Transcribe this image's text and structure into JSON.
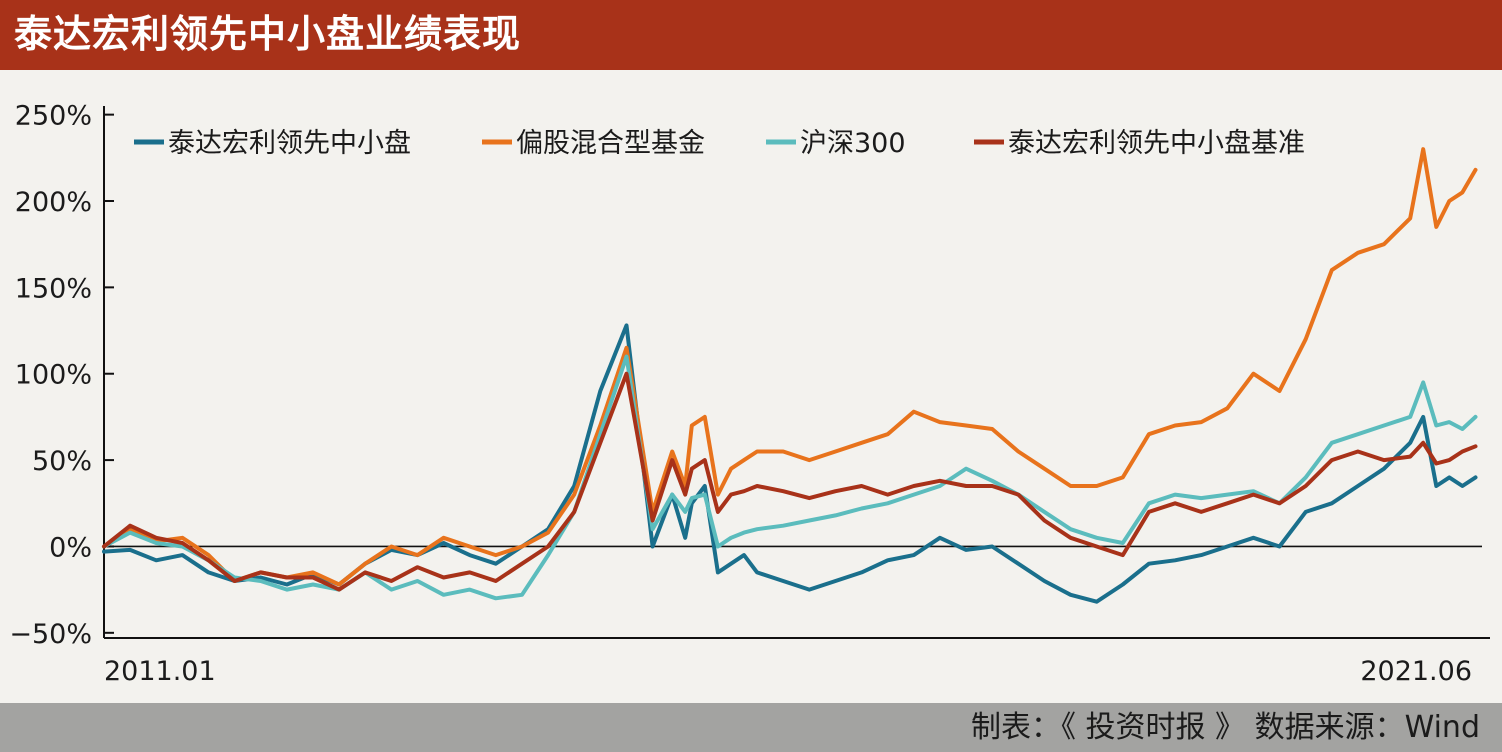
{
  "title": "泰达宏利领先中小盘业绩表现",
  "footer": "制表：《 投资时报 》 数据来源：Wind",
  "colors": {
    "title_bg": "#a83219",
    "footer_bg": "#a3a3a1",
    "background": "#f3f2ee"
  },
  "chart_data": {
    "type": "line",
    "title": "泰达宏利领先中小盘业绩表现",
    "xlabel": "",
    "ylabel": "",
    "x_tick_labels": [
      "2011.01",
      "2021.06"
    ],
    "y_ticks": [
      -50,
      0,
      50,
      100,
      150,
      200,
      250
    ],
    "y_tick_labels": [
      "−50%",
      "0%",
      "50%",
      "100%",
      "150%",
      "200%",
      "250%"
    ],
    "ylim": [
      -53,
      255
    ],
    "xlim": [
      2011.0,
      2021.55
    ],
    "grid": false,
    "legend_position": "top-left",
    "series": [
      {
        "name": "泰达宏利领先中小盘",
        "color": "#1a6f8c",
        "x": [
          2011.0,
          2011.2,
          2011.4,
          2011.6,
          2011.8,
          2012.0,
          2012.2,
          2012.4,
          2012.6,
          2012.8,
          2013.0,
          2013.2,
          2013.4,
          2013.6,
          2013.8,
          2014.0,
          2014.2,
          2014.4,
          2014.6,
          2014.8,
          2015.0,
          2015.2,
          2015.35,
          2015.45,
          2015.5,
          2015.6,
          2015.7,
          2015.8,
          2015.9,
          2016.0,
          2016.2,
          2016.4,
          2016.6,
          2016.8,
          2017.0,
          2017.2,
          2017.4,
          2017.6,
          2017.8,
          2018.0,
          2018.2,
          2018.4,
          2018.6,
          2018.8,
          2019.0,
          2019.2,
          2019.4,
          2019.6,
          2019.8,
          2020.0,
          2020.2,
          2020.4,
          2020.6,
          2020.8,
          2021.0,
          2021.1,
          2021.2,
          2021.3,
          2021.4,
          2021.5
        ],
        "y": [
          -3,
          -2,
          -8,
          -5,
          -15,
          -20,
          -18,
          -22,
          -16,
          -22,
          -10,
          -2,
          -5,
          2,
          -5,
          -10,
          0,
          10,
          35,
          90,
          128,
          0,
          30,
          5,
          25,
          35,
          -15,
          -10,
          -5,
          -15,
          -20,
          -25,
          -20,
          -15,
          -8,
          -5,
          5,
          -2,
          0,
          -10,
          -20,
          -28,
          -32,
          -22,
          -10,
          -8,
          -5,
          0,
          5,
          0,
          20,
          25,
          35,
          45,
          60,
          75,
          35,
          40,
          35,
          40
        ]
      },
      {
        "name": "偏股混合型基金",
        "color": "#e8731c",
        "x": [
          2011.0,
          2011.2,
          2011.4,
          2011.6,
          2011.8,
          2012.0,
          2012.2,
          2012.4,
          2012.6,
          2012.8,
          2013.0,
          2013.2,
          2013.4,
          2013.6,
          2013.8,
          2014.0,
          2014.2,
          2014.4,
          2014.6,
          2014.8,
          2015.0,
          2015.2,
          2015.35,
          2015.45,
          2015.5,
          2015.6,
          2015.7,
          2015.8,
          2015.9,
          2016.0,
          2016.2,
          2016.4,
          2016.6,
          2016.8,
          2017.0,
          2017.2,
          2017.4,
          2017.6,
          2017.8,
          2018.0,
          2018.2,
          2018.4,
          2018.6,
          2018.8,
          2019.0,
          2019.2,
          2019.4,
          2019.6,
          2019.8,
          2020.0,
          2020.2,
          2020.4,
          2020.6,
          2020.8,
          2021.0,
          2021.1,
          2021.2,
          2021.3,
          2021.4,
          2021.5
        ],
        "y": [
          0,
          10,
          3,
          5,
          -5,
          -20,
          -15,
          -18,
          -15,
          -22,
          -10,
          0,
          -5,
          5,
          0,
          -5,
          0,
          8,
          30,
          70,
          115,
          20,
          55,
          35,
          70,
          75,
          30,
          45,
          50,
          55,
          55,
          50,
          55,
          60,
          65,
          78,
          72,
          70,
          68,
          55,
          45,
          35,
          35,
          40,
          65,
          70,
          72,
          80,
          100,
          90,
          120,
          160,
          170,
          175,
          190,
          230,
          185,
          200,
          205,
          218
        ]
      },
      {
        "name": "沪深300",
        "color": "#5bbcbd",
        "x": [
          2011.0,
          2011.2,
          2011.4,
          2011.6,
          2011.8,
          2012.0,
          2012.2,
          2012.4,
          2012.6,
          2012.8,
          2013.0,
          2013.2,
          2013.4,
          2013.6,
          2013.8,
          2014.0,
          2014.2,
          2014.4,
          2014.6,
          2014.8,
          2015.0,
          2015.2,
          2015.35,
          2015.45,
          2015.5,
          2015.6,
          2015.7,
          2015.8,
          2015.9,
          2016.0,
          2016.2,
          2016.4,
          2016.6,
          2016.8,
          2017.0,
          2017.2,
          2017.4,
          2017.6,
          2017.8,
          2018.0,
          2018.2,
          2018.4,
          2018.6,
          2018.8,
          2019.0,
          2019.2,
          2019.4,
          2019.6,
          2019.8,
          2020.0,
          2020.2,
          2020.4,
          2020.6,
          2020.8,
          2021.0,
          2021.1,
          2021.2,
          2021.3,
          2021.4,
          2021.5
        ],
        "y": [
          0,
          8,
          2,
          0,
          -8,
          -18,
          -20,
          -25,
          -22,
          -25,
          -15,
          -25,
          -20,
          -28,
          -25,
          -30,
          -28,
          -5,
          20,
          65,
          110,
          10,
          30,
          20,
          28,
          30,
          0,
          5,
          8,
          10,
          12,
          15,
          18,
          22,
          25,
          30,
          35,
          45,
          38,
          30,
          20,
          10,
          5,
          2,
          25,
          30,
          28,
          30,
          32,
          25,
          40,
          60,
          65,
          70,
          75,
          95,
          70,
          72,
          68,
          75
        ]
      },
      {
        "name": "泰达宏利领先中小盘基准",
        "color": "#a83219",
        "x": [
          2011.0,
          2011.2,
          2011.4,
          2011.6,
          2011.8,
          2012.0,
          2012.2,
          2012.4,
          2012.6,
          2012.8,
          2013.0,
          2013.2,
          2013.4,
          2013.6,
          2013.8,
          2014.0,
          2014.2,
          2014.4,
          2014.6,
          2014.8,
          2015.0,
          2015.2,
          2015.35,
          2015.45,
          2015.5,
          2015.6,
          2015.7,
          2015.8,
          2015.9,
          2016.0,
          2016.2,
          2016.4,
          2016.6,
          2016.8,
          2017.0,
          2017.2,
          2017.4,
          2017.6,
          2017.8,
          2018.0,
          2018.2,
          2018.4,
          2018.6,
          2018.8,
          2019.0,
          2019.2,
          2019.4,
          2019.6,
          2019.8,
          2020.0,
          2020.2,
          2020.4,
          2020.6,
          2020.8,
          2021.0,
          2021.1,
          2021.2,
          2021.3,
          2021.4,
          2021.5
        ],
        "y": [
          0,
          12,
          5,
          2,
          -8,
          -20,
          -15,
          -18,
          -18,
          -25,
          -15,
          -20,
          -12,
          -18,
          -15,
          -20,
          -10,
          0,
          20,
          60,
          100,
          15,
          50,
          30,
          45,
          50,
          20,
          30,
          32,
          35,
          32,
          28,
          32,
          35,
          30,
          35,
          38,
          35,
          35,
          30,
          15,
          5,
          0,
          -5,
          20,
          25,
          20,
          25,
          30,
          25,
          35,
          50,
          55,
          50,
          52,
          60,
          48,
          50,
          55,
          58
        ]
      }
    ]
  }
}
